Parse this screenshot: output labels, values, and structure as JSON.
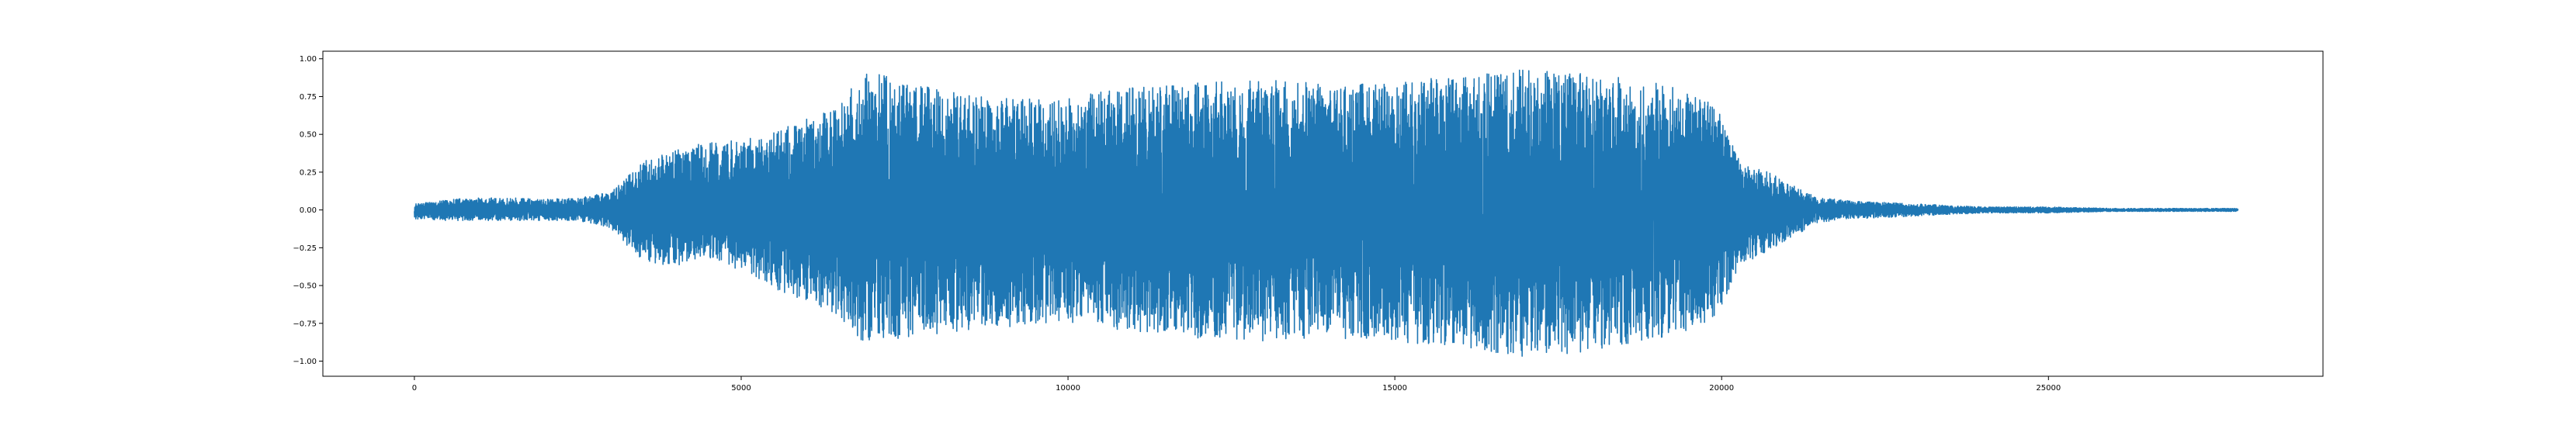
{
  "chart_data": {
    "type": "line",
    "title": "",
    "xlabel": "",
    "ylabel": "",
    "xlim": [
      -1400,
      29200
    ],
    "ylim": [
      -1.1,
      1.05
    ],
    "x_ticks": [
      0,
      5000,
      10000,
      15000,
      20000,
      25000
    ],
    "x_tick_labels": [
      "0",
      "5000",
      "10000",
      "15000",
      "20000",
      "25000"
    ],
    "y_ticks": [
      1.0,
      0.75,
      0.5,
      0.25,
      0.0,
      -0.25,
      -0.5,
      -0.75,
      -1.0
    ],
    "y_tick_labels": [
      "1.00",
      "0.75",
      "0.50",
      "0.25",
      "0.00",
      "−0.25",
      "−0.50",
      "−0.75",
      "−1.00"
    ],
    "grid": false,
    "legend": "none",
    "series": [
      {
        "color": "#1f77b4",
        "sample_count": 27900,
        "x_range": [
          0,
          27900
        ],
        "envelope": {
          "x": [
            0,
            500,
            1000,
            1500,
            2000,
            2500,
            3000,
            3500,
            4000,
            4500,
            5000,
            5500,
            6000,
            6500,
            6800,
            7000,
            7500,
            8000,
            8500,
            9000,
            9500,
            10000,
            10500,
            11000,
            11500,
            12000,
            12500,
            13000,
            13500,
            14000,
            14500,
            15000,
            15500,
            16000,
            16500,
            17000,
            17500,
            18000,
            18500,
            19000,
            19500,
            19900,
            20300,
            20600,
            21000,
            21500,
            22000,
            22500,
            23000,
            24000,
            25000,
            26000,
            27000,
            27900
          ],
          "upper": [
            0.04,
            0.07,
            0.08,
            0.08,
            0.07,
            0.08,
            0.12,
            0.32,
            0.4,
            0.45,
            0.46,
            0.52,
            0.6,
            0.68,
            0.9,
            0.91,
            0.85,
            0.8,
            0.76,
            0.74,
            0.74,
            0.75,
            0.78,
            0.82,
            0.82,
            0.84,
            0.85,
            0.86,
            0.85,
            0.83,
            0.85,
            0.85,
            0.87,
            0.89,
            0.91,
            0.93,
            0.91,
            0.9,
            0.88,
            0.84,
            0.78,
            0.72,
            0.3,
            0.28,
            0.18,
            0.08,
            0.06,
            0.05,
            0.04,
            0.02,
            0.02,
            0.01,
            0.01,
            0.01
          ],
          "lower": [
            -0.06,
            -0.07,
            -0.07,
            -0.07,
            -0.07,
            -0.07,
            -0.12,
            -0.35,
            -0.37,
            -0.32,
            -0.4,
            -0.52,
            -0.62,
            -0.7,
            -0.86,
            -0.89,
            -0.85,
            -0.82,
            -0.8,
            -0.78,
            -0.75,
            -0.74,
            -0.77,
            -0.81,
            -0.82,
            -0.85,
            -0.86,
            -0.87,
            -0.86,
            -0.85,
            -0.87,
            -0.87,
            -0.89,
            -0.91,
            -0.94,
            -0.98,
            -0.96,
            -0.93,
            -0.9,
            -0.86,
            -0.8,
            -0.72,
            -0.38,
            -0.3,
            -0.2,
            -0.08,
            -0.06,
            -0.05,
            -0.04,
            -0.02,
            -0.02,
            -0.01,
            -0.01,
            -0.01
          ]
        }
      }
    ]
  }
}
